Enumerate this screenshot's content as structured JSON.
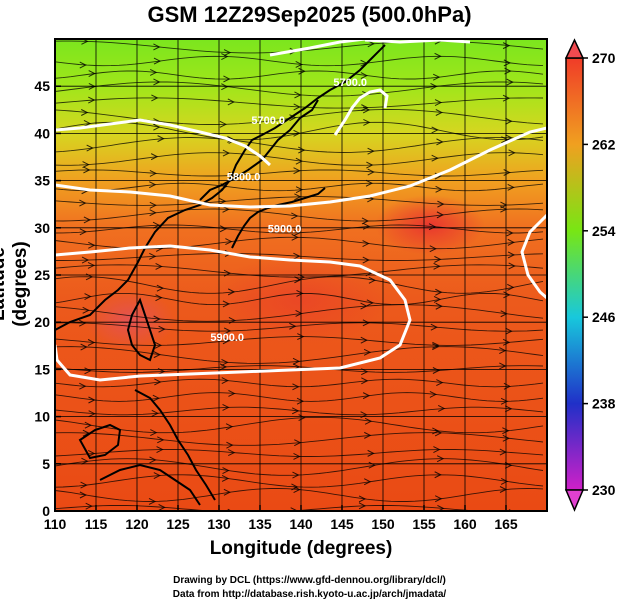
{
  "title": "GSM 12Z29Sep2025 (500.0hPa)",
  "chart_data": {
    "type": "map",
    "title": "GSM 12Z29Sep2025 (500.0hPa)",
    "xlabel": "Longitude (degrees)",
    "ylabel": "Latitude  (degrees)",
    "xlim": [
      110,
      170
    ],
    "ylim": [
      0,
      50
    ],
    "xticks": [
      "110",
      "115",
      "120",
      "125",
      "130",
      "135",
      "140",
      "145",
      "150",
      "155",
      "160",
      "165"
    ],
    "yticks": [
      "0",
      "5",
      "10",
      "15",
      "20",
      "25",
      "30",
      "35",
      "40",
      "45"
    ],
    "shading": "temperature (K)",
    "colorbar": {
      "range": [
        230,
        270
      ],
      "labels": [
        "270",
        "262",
        "254",
        "246",
        "238",
        "230"
      ]
    },
    "contours": [
      {
        "label": "5700.0",
        "at": [
          136,
          41
        ]
      },
      {
        "label": "5800.0",
        "at": [
          133,
          35
        ]
      },
      {
        "label": "5900.0",
        "at": [
          138,
          29.5
        ]
      },
      {
        "label": "5900.0",
        "at": [
          131,
          18
        ]
      },
      {
        "label": "5700.0",
        "at": [
          146,
          45
        ]
      }
    ],
    "overlay": "streamlines (wind)"
  },
  "credits": {
    "line1": "Drawing by DCL (https://www.gfd-dennou.org/library/dcl/)",
    "line2": "Data from http://database.rish.kyoto-u.ac.jp/arch/jmadata/"
  }
}
